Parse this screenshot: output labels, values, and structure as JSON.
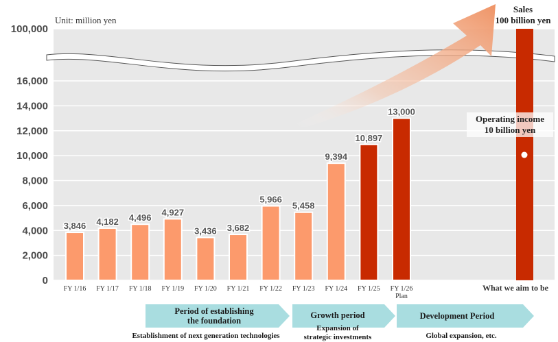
{
  "chart_data": {
    "type": "bar",
    "unit_label": "Unit: million yen",
    "categories": [
      "FY 1/16",
      "FY 1/17",
      "FY 1/18",
      "FY 1/19",
      "FY 1/20",
      "FY 1/21",
      "FY 1/22",
      "FY 1/23",
      "FY 1/24",
      "FY 1/25",
      "FY 1/26"
    ],
    "category_notes": [
      "",
      "",
      "",
      "",
      "",
      "",
      "",
      "",
      "",
      "",
      "Plan"
    ],
    "values": [
      3846,
      4182,
      4496,
      4927,
      3436,
      3682,
      5966,
      5458,
      9394,
      10897,
      13000
    ],
    "value_labels": [
      "3,846",
      "4,182",
      "4,496",
      "4,927",
      "3,436",
      "3,682",
      "5,966",
      "5,458",
      "9,394",
      "10,897",
      "13,000"
    ],
    "bar_colors": [
      "#fc9a6c",
      "#fc9a6c",
      "#fc9a6c",
      "#fc9a6c",
      "#fc9a6c",
      "#fc9a6c",
      "#fc9a6c",
      "#fc9a6c",
      "#fc9a6c",
      "#c82a00",
      "#c82a00"
    ],
    "target": {
      "category": "What we aim to be",
      "value": 100000,
      "sales_label": "Sales",
      "sales_value_label": "100 billion yen",
      "operating_income_label": "Operating income",
      "operating_income_value_label": "10 billion yen",
      "color": "#c82a00"
    },
    "y_ticks": [
      "0",
      "2,000",
      "4,000",
      "6,000",
      "8,000",
      "10,000",
      "12,000",
      "14,000",
      "16,000",
      "100,000"
    ],
    "y_tick_values": [
      0,
      2000,
      4000,
      6000,
      8000,
      10000,
      12000,
      14000,
      16000,
      100000
    ],
    "ylim": [
      0,
      16000
    ],
    "axis_break": true,
    "grid": true,
    "phases": [
      {
        "title_lines": [
          "Period of establishing",
          "the foundation"
        ],
        "caption": "Establishment of next generation technologies"
      },
      {
        "title_lines": [
          "Growth period"
        ],
        "caption_lines": [
          "Expansion of",
          "strategic investments"
        ]
      },
      {
        "title_lines": [
          "Development Period"
        ],
        "caption": "Global expansion, etc."
      }
    ],
    "colors": {
      "bar_past": "#fc9a6c",
      "bar_recent": "#c82a00",
      "plot_bg": "#e8e8e8",
      "phase_arrow": "#a9dde0",
      "growth_arrow": "#f0a07c"
    }
  }
}
